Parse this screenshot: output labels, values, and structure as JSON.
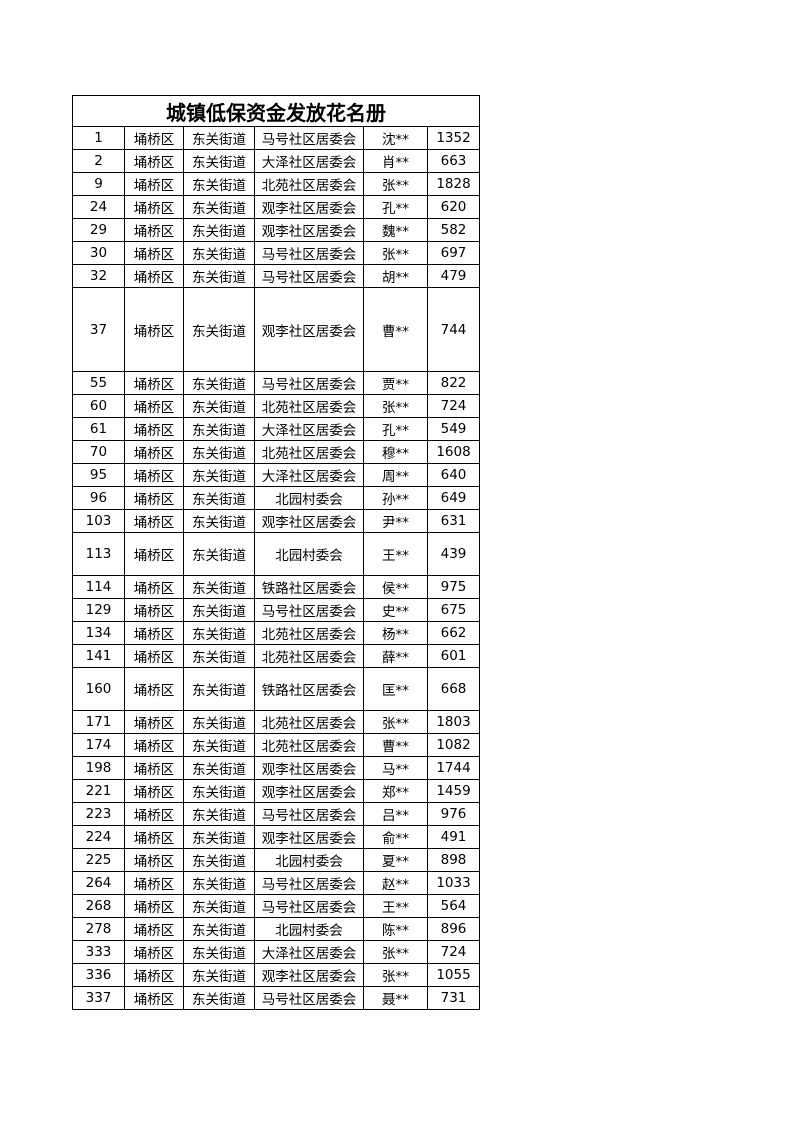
{
  "title": "城镇低保资金发放花名册",
  "rows": [
    [
      "1",
      "埇桥区",
      "东关街道",
      "马号社区居委会",
      "沈**",
      "1352"
    ],
    [
      "2",
      "埇桥区",
      "东关街道",
      "大泽社区居委会",
      "肖**",
      "663"
    ],
    [
      "9",
      "埇桥区",
      "东关街道",
      "北苑社区居委会",
      "张**",
      "1828"
    ],
    [
      "24",
      "埇桥区",
      "东关街道",
      "观李社区居委会",
      "孔**",
      "620"
    ],
    [
      "29",
      "埇桥区",
      "东关街道",
      "观李社区居委会",
      "魏**",
      "582"
    ],
    [
      "30",
      "埇桥区",
      "东关街道",
      "马号社区居委会",
      "张**",
      "697"
    ],
    [
      "32",
      "埇桥区",
      "东关街道",
      "马号社区居委会",
      "胡**",
      "479"
    ],
    [
      "37",
      "埇桥区",
      "东关街道",
      "观李社区居委会",
      "曹**",
      "744"
    ],
    [
      "55",
      "埇桥区",
      "东关街道",
      "马号社区居委会",
      "贾**",
      "822"
    ],
    [
      "60",
      "埇桥区",
      "东关街道",
      "北苑社区居委会",
      "张**",
      "724"
    ],
    [
      "61",
      "埇桥区",
      "东关街道",
      "大泽社区居委会",
      "孔**",
      "549"
    ],
    [
      "70",
      "埇桥区",
      "东关街道",
      "北苑社区居委会",
      "穆**",
      "1608"
    ],
    [
      "95",
      "埇桥区",
      "东关街道",
      "大泽社区居委会",
      "周**",
      "640"
    ],
    [
      "96",
      "埇桥区",
      "东关街道",
      "北园村委会",
      "孙**",
      "649"
    ],
    [
      "103",
      "埇桥区",
      "东关街道",
      "观李社区居委会",
      "尹**",
      "631"
    ],
    [
      "113",
      "埇桥区",
      "东关街道",
      "北园村委会",
      "王**",
      "439"
    ],
    [
      "114",
      "埇桥区",
      "东关街道",
      "铁路社区居委会",
      "侯**",
      "975"
    ],
    [
      "129",
      "埇桥区",
      "东关街道",
      "马号社区居委会",
      "史**",
      "675"
    ],
    [
      "134",
      "埇桥区",
      "东关街道",
      "北苑社区居委会",
      "杨**",
      "662"
    ],
    [
      "141",
      "埇桥区",
      "东关街道",
      "北苑社区居委会",
      "薛**",
      "601"
    ],
    [
      "160",
      "埇桥区",
      "东关街道",
      "铁路社区居委会",
      "匡**",
      "668"
    ],
    [
      "171",
      "埇桥区",
      "东关街道",
      "北苑社区居委会",
      "张**",
      "1803"
    ],
    [
      "174",
      "埇桥区",
      "东关街道",
      "北苑社区居委会",
      "曹**",
      "1082"
    ],
    [
      "198",
      "埇桥区",
      "东关街道",
      "观李社区居委会",
      "马**",
      "1744"
    ],
    [
      "221",
      "埇桥区",
      "东关街道",
      "观李社区居委会",
      "郑**",
      "1459"
    ],
    [
      "223",
      "埇桥区",
      "东关街道",
      "马号社区居委会",
      "吕**",
      "976"
    ],
    [
      "224",
      "埇桥区",
      "东关街道",
      "观李社区居委会",
      "俞**",
      "491"
    ],
    [
      "225",
      "埇桥区",
      "东关街道",
      "北园村委会",
      "夏**",
      "898"
    ],
    [
      "264",
      "埇桥区",
      "东关街道",
      "马号社区居委会",
      "赵**",
      "1033"
    ],
    [
      "268",
      "埇桥区",
      "东关街道",
      "马号社区居委会",
      "王**",
      "564"
    ],
    [
      "278",
      "埇桥区",
      "东关街道",
      "北园村委会",
      "陈**",
      "896"
    ],
    [
      "333",
      "埇桥区",
      "东关街道",
      "大泽社区居委会",
      "张**",
      "724"
    ],
    [
      "336",
      "埇桥区",
      "东关街道",
      "观李社区居委会",
      "张**",
      "1055"
    ],
    [
      "337",
      "埇桥区",
      "东关街道",
      "马号社区居委会",
      "聂**",
      "731"
    ]
  ]
}
